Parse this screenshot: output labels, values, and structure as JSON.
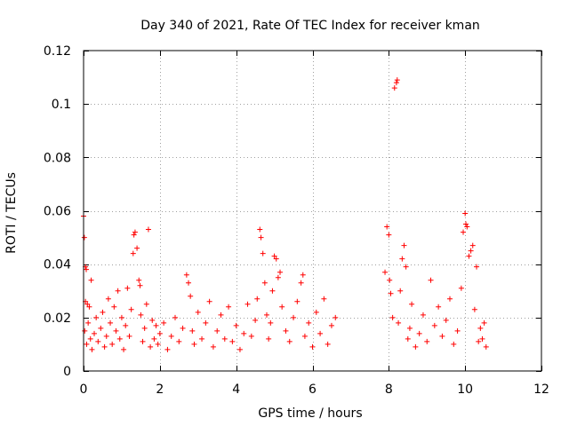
{
  "chart_data": {
    "type": "scatter",
    "title": "Day 340 of 2021, Rate Of TEC Index for receiver kman",
    "xlabel": "GPS time / hours",
    "ylabel": "ROTI / TECUs",
    "xlim": [
      0,
      12
    ],
    "ylim": [
      0,
      0.12
    ],
    "grid": true,
    "marker": "+",
    "color": "#ff0000",
    "x_ticks": [
      0,
      2,
      4,
      6,
      8,
      10,
      12
    ],
    "x_tick_labels": [
      "0",
      "2",
      "4",
      "6",
      "8",
      "10",
      "12"
    ],
    "y_ticks": [
      0,
      0.02,
      0.04,
      0.06,
      0.08,
      0.1,
      0.12
    ],
    "y_tick_labels": [
      "0",
      "0.02",
      "0.04",
      "0.06",
      "0.08",
      "0.1",
      "0.12"
    ],
    "series": [
      {
        "name": "ROTI",
        "points": [
          [
            0.0,
            0.058
          ],
          [
            0.02,
            0.05
          ],
          [
            0.05,
            0.039
          ],
          [
            0.07,
            0.038
          ],
          [
            0.05,
            0.026
          ],
          [
            0.1,
            0.025
          ],
          [
            0.15,
            0.024
          ],
          [
            0.2,
            0.034
          ],
          [
            0.03,
            0.015
          ],
          [
            0.08,
            0.01
          ],
          [
            0.12,
            0.018
          ],
          [
            0.18,
            0.012
          ],
          [
            0.22,
            0.008
          ],
          [
            0.28,
            0.014
          ],
          [
            0.33,
            0.02
          ],
          [
            0.38,
            0.011
          ],
          [
            0.45,
            0.016
          ],
          [
            0.5,
            0.022
          ],
          [
            0.55,
            0.009
          ],
          [
            0.6,
            0.013
          ],
          [
            0.65,
            0.027
          ],
          [
            0.7,
            0.018
          ],
          [
            0.75,
            0.01
          ],
          [
            0.8,
            0.024
          ],
          [
            0.85,
            0.015
          ],
          [
            0.9,
            0.03
          ],
          [
            0.95,
            0.012
          ],
          [
            1.0,
            0.02
          ],
          [
            1.05,
            0.008
          ],
          [
            1.1,
            0.017
          ],
          [
            1.15,
            0.031
          ],
          [
            1.2,
            0.013
          ],
          [
            1.25,
            0.023
          ],
          [
            1.3,
            0.044
          ],
          [
            1.32,
            0.051
          ],
          [
            1.35,
            0.052
          ],
          [
            1.4,
            0.046
          ],
          [
            1.45,
            0.034
          ],
          [
            1.48,
            0.032
          ],
          [
            1.5,
            0.021
          ],
          [
            1.55,
            0.011
          ],
          [
            1.6,
            0.016
          ],
          [
            1.65,
            0.025
          ],
          [
            1.7,
            0.053
          ],
          [
            1.75,
            0.009
          ],
          [
            1.8,
            0.019
          ],
          [
            1.85,
            0.012
          ],
          [
            1.9,
            0.017
          ],
          [
            1.95,
            0.01
          ],
          [
            2.0,
            0.014
          ],
          [
            2.1,
            0.018
          ],
          [
            2.2,
            0.008
          ],
          [
            2.3,
            0.013
          ],
          [
            2.4,
            0.02
          ],
          [
            2.5,
            0.011
          ],
          [
            2.6,
            0.016
          ],
          [
            2.7,
            0.036
          ],
          [
            2.75,
            0.033
          ],
          [
            2.8,
            0.028
          ],
          [
            2.85,
            0.015
          ],
          [
            2.9,
            0.01
          ],
          [
            3.0,
            0.022
          ],
          [
            3.1,
            0.012
          ],
          [
            3.2,
            0.018
          ],
          [
            3.3,
            0.026
          ],
          [
            3.4,
            0.009
          ],
          [
            3.5,
            0.015
          ],
          [
            3.6,
            0.021
          ],
          [
            3.7,
            0.012
          ],
          [
            3.8,
            0.024
          ],
          [
            3.9,
            0.011
          ],
          [
            4.0,
            0.017
          ],
          [
            4.1,
            0.008
          ],
          [
            4.2,
            0.014
          ],
          [
            4.3,
            0.025
          ],
          [
            4.4,
            0.013
          ],
          [
            4.5,
            0.019
          ],
          [
            4.55,
            0.027
          ],
          [
            4.62,
            0.053
          ],
          [
            4.65,
            0.05
          ],
          [
            4.7,
            0.044
          ],
          [
            4.75,
            0.033
          ],
          [
            4.8,
            0.021
          ],
          [
            4.85,
            0.012
          ],
          [
            4.9,
            0.018
          ],
          [
            4.95,
            0.03
          ],
          [
            5.0,
            0.043
          ],
          [
            5.05,
            0.042
          ],
          [
            5.1,
            0.035
          ],
          [
            5.15,
            0.037
          ],
          [
            5.2,
            0.024
          ],
          [
            5.3,
            0.015
          ],
          [
            5.4,
            0.011
          ],
          [
            5.5,
            0.02
          ],
          [
            5.6,
            0.026
          ],
          [
            5.7,
            0.033
          ],
          [
            5.75,
            0.036
          ],
          [
            5.8,
            0.013
          ],
          [
            5.9,
            0.018
          ],
          [
            6.0,
            0.009
          ],
          [
            6.1,
            0.022
          ],
          [
            6.2,
            0.014
          ],
          [
            6.3,
            0.027
          ],
          [
            6.4,
            0.01
          ],
          [
            6.5,
            0.017
          ],
          [
            6.6,
            0.02
          ],
          [
            7.9,
            0.037
          ],
          [
            7.95,
            0.054
          ],
          [
            8.0,
            0.051
          ],
          [
            8.02,
            0.034
          ],
          [
            8.05,
            0.029
          ],
          [
            8.1,
            0.02
          ],
          [
            8.15,
            0.106
          ],
          [
            8.2,
            0.108
          ],
          [
            8.22,
            0.109
          ],
          [
            8.25,
            0.018
          ],
          [
            8.3,
            0.03
          ],
          [
            8.35,
            0.042
          ],
          [
            8.4,
            0.047
          ],
          [
            8.45,
            0.039
          ],
          [
            8.5,
            0.012
          ],
          [
            8.55,
            0.016
          ],
          [
            8.6,
            0.025
          ],
          [
            8.7,
            0.009
          ],
          [
            8.8,
            0.014
          ],
          [
            8.9,
            0.021
          ],
          [
            9.0,
            0.011
          ],
          [
            9.1,
            0.034
          ],
          [
            9.2,
            0.017
          ],
          [
            9.3,
            0.024
          ],
          [
            9.4,
            0.013
          ],
          [
            9.5,
            0.019
          ],
          [
            9.6,
            0.027
          ],
          [
            9.7,
            0.01
          ],
          [
            9.8,
            0.015
          ],
          [
            9.9,
            0.031
          ],
          [
            9.95,
            0.052
          ],
          [
            10.0,
            0.059
          ],
          [
            10.02,
            0.055
          ],
          [
            10.05,
            0.054
          ],
          [
            10.1,
            0.043
          ],
          [
            10.15,
            0.045
          ],
          [
            10.2,
            0.047
          ],
          [
            10.25,
            0.023
          ],
          [
            10.3,
            0.039
          ],
          [
            10.35,
            0.011
          ],
          [
            10.4,
            0.016
          ],
          [
            10.45,
            0.012
          ],
          [
            10.5,
            0.018
          ],
          [
            10.55,
            0.009
          ]
        ]
      }
    ]
  }
}
